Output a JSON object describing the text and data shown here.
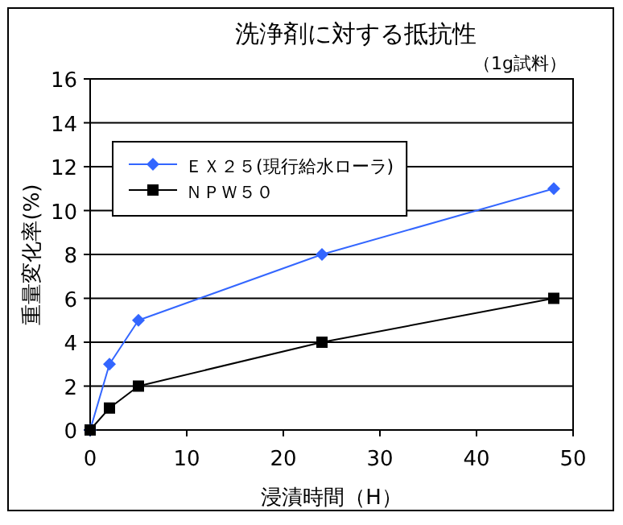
{
  "chart_data": {
    "type": "line",
    "title": "洗浄剤に対する抵抗性",
    "annotations": [
      "（1g試料）"
    ],
    "xlabel": "浸漬時間（H）",
    "ylabel": "重量変化率(%)",
    "xlim": [
      0,
      50
    ],
    "xticks": [
      0,
      10,
      20,
      30,
      40,
      50
    ],
    "ylim": [
      0,
      16
    ],
    "yticks": [
      0,
      2,
      4,
      6,
      8,
      10,
      12,
      14,
      16
    ],
    "grid": "y",
    "legend": "top left",
    "series": [
      {
        "name": "ＥＸ２５(現行給水ローラ)",
        "color": "#3366ff",
        "marker": "diamond",
        "x": [
          0,
          2,
          5,
          24,
          48
        ],
        "values": [
          0,
          3,
          5,
          8,
          11
        ]
      },
      {
        "name": "ＮＰＷ５０",
        "color": "#000000",
        "marker": "square",
        "x": [
          0,
          2,
          5,
          24,
          48
        ],
        "values": [
          0,
          1,
          2,
          4,
          6
        ]
      }
    ]
  }
}
